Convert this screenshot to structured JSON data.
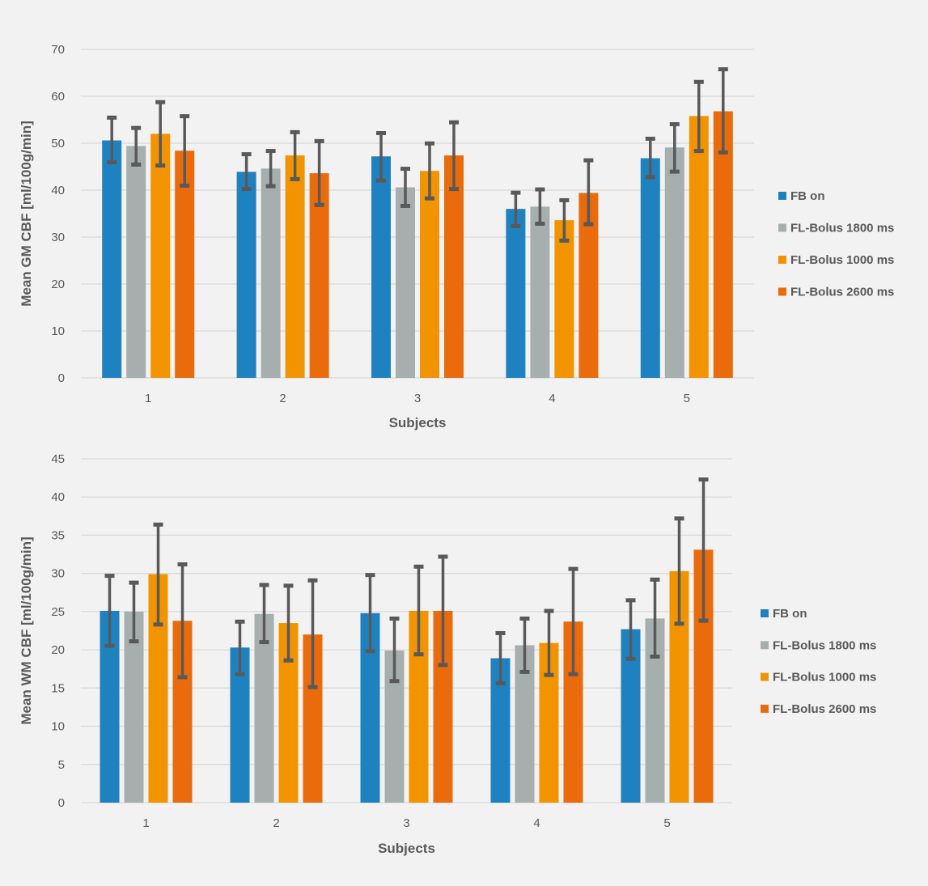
{
  "chart_data": [
    {
      "type": "bar",
      "title": "",
      "xlabel": "Subjects",
      "ylabel": "Mean GM CBF [ml/100g/min]",
      "ylim": [
        0,
        70
      ],
      "ytick_step": 10,
      "yticks": [
        "0",
        "10",
        "20",
        "30",
        "40",
        "50",
        "60",
        "70"
      ],
      "grid": true,
      "legend_position": "right",
      "categories": [
        "1",
        "2",
        "3",
        "4",
        "5"
      ],
      "series": [
        {
          "name": "FB on",
          "color": "#1f82c0",
          "values": [
            50.6,
            43.9,
            47.2,
            36.0,
            46.8
          ],
          "err_high": [
            55.8,
            48.0,
            52.5,
            39.8,
            51.3
          ],
          "err_low": [
            45.6,
            39.9,
            41.7,
            32.0,
            42.4
          ]
        },
        {
          "name": "FL-Bolus 1800 ms",
          "color": "#a7afae",
          "values": [
            49.4,
            44.6,
            40.6,
            36.5,
            49.1
          ],
          "err_high": [
            53.6,
            48.7,
            44.9,
            40.5,
            54.4
          ],
          "err_low": [
            45.1,
            40.5,
            36.3,
            32.5,
            43.6
          ]
        },
        {
          "name": "FL-Bolus 1000 ms",
          "color": "#f29400",
          "values": [
            52.0,
            47.4,
            44.1,
            33.6,
            55.8
          ],
          "err_high": [
            59.1,
            52.7,
            50.3,
            38.2,
            63.4
          ],
          "err_low": [
            44.9,
            42.0,
            37.9,
            28.9,
            48.0
          ]
        },
        {
          "name": "FL-Bolus 2600 ms",
          "color": "#ea6b0c",
          "values": [
            48.4,
            43.6,
            47.4,
            39.4,
            56.8
          ],
          "err_high": [
            56.1,
            50.8,
            54.8,
            46.7,
            66.1
          ],
          "err_low": [
            40.6,
            36.5,
            39.9,
            32.4,
            47.7
          ]
        }
      ]
    },
    {
      "type": "bar",
      "title": "",
      "xlabel": "Subjects",
      "ylabel": "Mean WM CBF [ml/100g/min]",
      "ylim": [
        0,
        45
      ],
      "ytick_step": 5,
      "yticks": [
        "0",
        "5",
        "10",
        "15",
        "20",
        "25",
        "30",
        "35",
        "40",
        "45"
      ],
      "grid": true,
      "legend_position": "right",
      "categories": [
        "1",
        "2",
        "3",
        "4",
        "5"
      ],
      "series": [
        {
          "name": "FB on",
          "color": "#1f82c0",
          "values": [
            25.1,
            20.3,
            24.8,
            18.9,
            22.7
          ],
          "err_high": [
            29.9,
            23.9,
            30.0,
            22.4,
            26.7
          ],
          "err_low": [
            20.3,
            16.6,
            19.6,
            15.4,
            18.6
          ]
        },
        {
          "name": "FL-Bolus 1800 ms",
          "color": "#a7afae",
          "values": [
            25.0,
            24.7,
            19.9,
            20.6,
            24.1
          ],
          "err_high": [
            29.0,
            28.7,
            24.3,
            24.3,
            29.4
          ],
          "err_low": [
            20.9,
            20.8,
            15.7,
            16.9,
            18.9
          ]
        },
        {
          "name": "FL-Bolus 1000 ms",
          "color": "#f29400",
          "values": [
            29.9,
            23.5,
            25.1,
            20.9,
            30.3
          ],
          "err_high": [
            36.6,
            28.6,
            31.1,
            25.3,
            37.4
          ],
          "err_low": [
            23.1,
            18.4,
            19.2,
            16.5,
            23.2
          ]
        },
        {
          "name": "FL-Bolus 2600 ms",
          "color": "#ea6b0c",
          "values": [
            23.8,
            22.0,
            25.1,
            23.7,
            33.1
          ],
          "err_high": [
            31.4,
            29.3,
            32.4,
            30.8,
            42.5
          ],
          "err_low": [
            16.2,
            14.9,
            17.8,
            16.6,
            23.6
          ]
        }
      ]
    }
  ]
}
